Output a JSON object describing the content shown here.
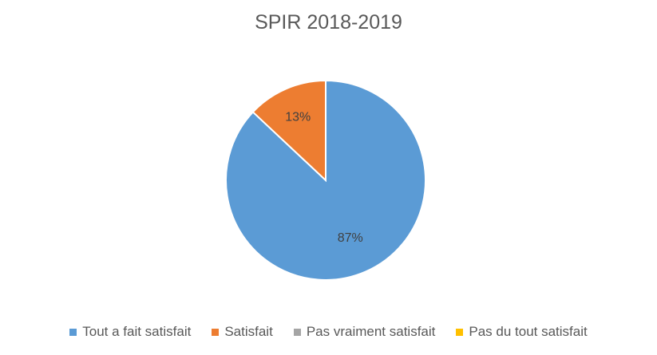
{
  "chart_data": {
    "type": "pie",
    "title": "SPIR 2018-2019",
    "categories": [
      "Tout a fait satisfait",
      "Satisfait",
      "Pas vraiment satisfait",
      "Pas du tout satisfait"
    ],
    "values": [
      87,
      13,
      0,
      0
    ],
    "data_labels": [
      "87%",
      "13%",
      "",
      ""
    ],
    "colors": [
      "#5B9BD5",
      "#ED7D31",
      "#A5A5A5",
      "#FFC000"
    ],
    "legend_position": "bottom",
    "start_angle": "top, clockwise"
  }
}
